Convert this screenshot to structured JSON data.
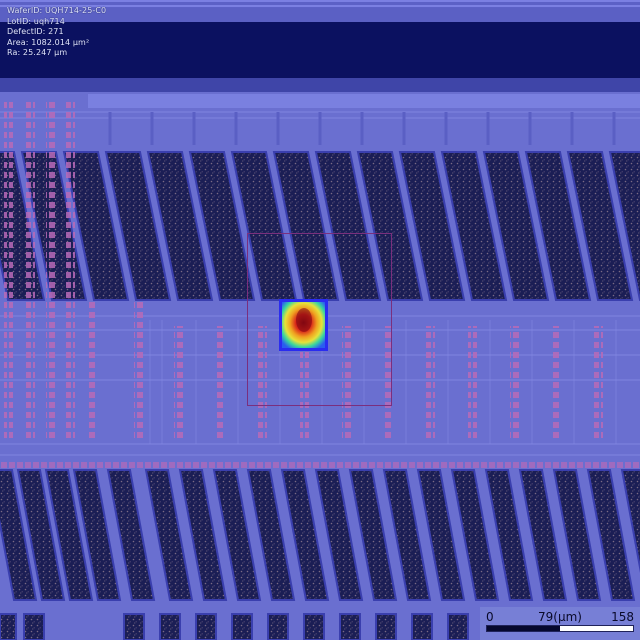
{
  "metadata": {
    "wafer_id": "WaferID: UQH714-25-C0",
    "lot_id": "LotID: uqh714",
    "defect_id": "DefectID: 271",
    "area": "Area: 1082.014 µm²",
    "ra": "Ra: 25.247 µm"
  },
  "scalebar": {
    "min_label": "0",
    "mid_label": "79(µm)",
    "max_label": "158",
    "fill_fraction": 0.5
  },
  "colors": {
    "substrate": "#6a6fd0",
    "top_band": "#0b1160",
    "pad_dark": "#1a1d52",
    "pad_border": "#3a3fae",
    "via_pink": "#b86ab8",
    "defect_box": "#7a2f7e",
    "heat_border": "#2a2cf0"
  },
  "icons": {
    "defect_marker": "heatmap-defect-icon"
  }
}
